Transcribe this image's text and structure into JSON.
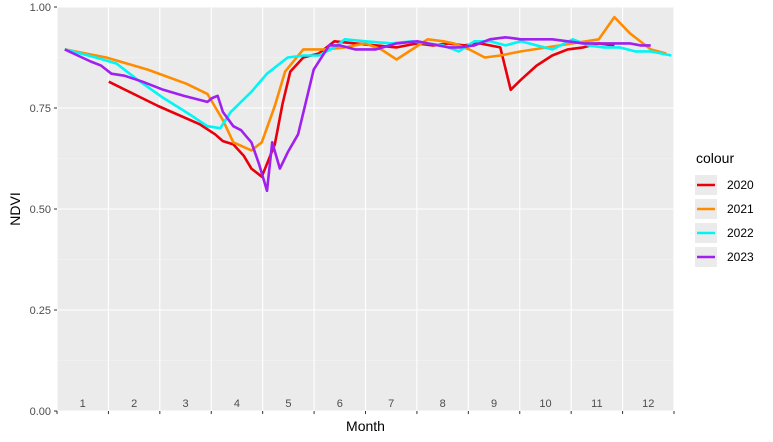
{
  "chart_data": {
    "type": "line",
    "xlabel": "Month",
    "ylabel": "NDVI",
    "xlim": [
      0.55,
      12.45
    ],
    "ylim": [
      0,
      1
    ],
    "yticks": [
      "0.00",
      "0.25",
      "0.50",
      "0.75",
      "1.00"
    ],
    "ytick_values": [
      0,
      0.25,
      0.5,
      0.75,
      1.0
    ],
    "month_labels": [
      "1",
      "2",
      "3",
      "4",
      "5",
      "6",
      "7",
      "8",
      "9",
      "10",
      "11",
      "12"
    ],
    "grid": true,
    "legend": {
      "title": "colour",
      "position": "right"
    },
    "series": [
      {
        "name": "2020",
        "color": "#e8000b",
        "x": [
          1.55,
          2.5,
          3.3,
          3.6,
          3.75,
          3.95,
          4.15,
          4.3,
          4.5,
          4.75,
          4.9,
          5.05,
          5.3,
          5.6,
          5.9,
          6.3,
          6.7,
          7.1,
          7.5,
          7.8,
          8.1,
          8.4,
          8.7,
          8.9,
          9.1,
          9.3,
          9.5,
          9.8,
          10.1,
          10.4,
          10.7,
          11.0,
          11.3
        ],
        "y": [
          0.815,
          0.755,
          0.71,
          0.685,
          0.668,
          0.66,
          0.632,
          0.6,
          0.58,
          0.66,
          0.76,
          0.84,
          0.875,
          0.885,
          0.915,
          0.91,
          0.905,
          0.9,
          0.91,
          0.905,
          0.91,
          0.905,
          0.91,
          0.905,
          0.9,
          0.795,
          0.82,
          0.855,
          0.88,
          0.895,
          0.9,
          0.91,
          0.905
        ]
      },
      {
        "name": "2021",
        "color": "#ff8c00",
        "x": [
          0.7,
          1.5,
          2.3,
          3.05,
          3.45,
          3.75,
          3.95,
          4.3,
          4.5,
          4.75,
          4.95,
          5.3,
          5.7,
          6.1,
          6.5,
          6.8,
          7.1,
          7.4,
          7.7,
          8.0,
          8.2,
          8.5,
          8.8,
          9.1,
          9.5,
          10.0,
          10.5,
          11.0,
          11.3,
          11.6,
          12.0,
          12.3
        ],
        "y": [
          0.895,
          0.875,
          0.845,
          0.81,
          0.785,
          0.72,
          0.665,
          0.645,
          0.665,
          0.755,
          0.84,
          0.895,
          0.895,
          0.9,
          0.91,
          0.895,
          0.87,
          0.895,
          0.92,
          0.915,
          0.91,
          0.895,
          0.875,
          0.88,
          0.89,
          0.9,
          0.91,
          0.92,
          0.975,
          0.935,
          0.895,
          0.885
        ]
      },
      {
        "name": "2022",
        "color": "#00f5f5",
        "x": [
          0.7,
          1.3,
          1.7,
          2.1,
          2.6,
          3.1,
          3.45,
          3.7,
          3.9,
          4.3,
          4.6,
          5.0,
          5.3,
          5.6,
          5.9,
          6.1,
          6.5,
          7.0,
          7.4,
          7.7,
          8.0,
          8.3,
          8.6,
          8.9,
          9.2,
          9.5,
          9.8,
          10.1,
          10.5,
          10.8,
          11.1,
          11.4,
          11.7,
          12.0,
          12.4
        ],
        "y": [
          0.895,
          0.875,
          0.86,
          0.82,
          0.775,
          0.735,
          0.705,
          0.7,
          0.74,
          0.79,
          0.835,
          0.875,
          0.88,
          0.88,
          0.9,
          0.92,
          0.915,
          0.91,
          0.915,
          0.91,
          0.905,
          0.89,
          0.915,
          0.915,
          0.905,
          0.915,
          0.905,
          0.895,
          0.92,
          0.905,
          0.9,
          0.9,
          0.89,
          0.89,
          0.88
        ]
      },
      {
        "name": "2023",
        "color": "#a020f0",
        "x": [
          0.7,
          0.95,
          1.2,
          1.4,
          1.6,
          1.85,
          2.2,
          2.6,
          3.0,
          3.3,
          3.45,
          3.55,
          3.65,
          3.75,
          3.95,
          4.1,
          4.2,
          4.3,
          4.45,
          4.6,
          4.7,
          4.85,
          5.0,
          5.2,
          5.5,
          5.8,
          6.0,
          6.3,
          6.7,
          7.1,
          7.5,
          7.9,
          8.1,
          8.3,
          8.6,
          8.9,
          9.2,
          9.5,
          9.8,
          10.1,
          10.4,
          10.7,
          11.0,
          11.3,
          11.6,
          11.8,
          12.0
        ],
        "y": [
          0.895,
          0.88,
          0.865,
          0.855,
          0.835,
          0.83,
          0.815,
          0.795,
          0.78,
          0.77,
          0.765,
          0.775,
          0.78,
          0.74,
          0.705,
          0.695,
          0.68,
          0.665,
          0.61,
          0.545,
          0.665,
          0.6,
          0.64,
          0.685,
          0.845,
          0.905,
          0.905,
          0.895,
          0.895,
          0.91,
          0.915,
          0.905,
          0.9,
          0.9,
          0.905,
          0.92,
          0.925,
          0.92,
          0.92,
          0.92,
          0.915,
          0.91,
          0.91,
          0.91,
          0.91,
          0.905,
          0.905
        ]
      }
    ]
  }
}
